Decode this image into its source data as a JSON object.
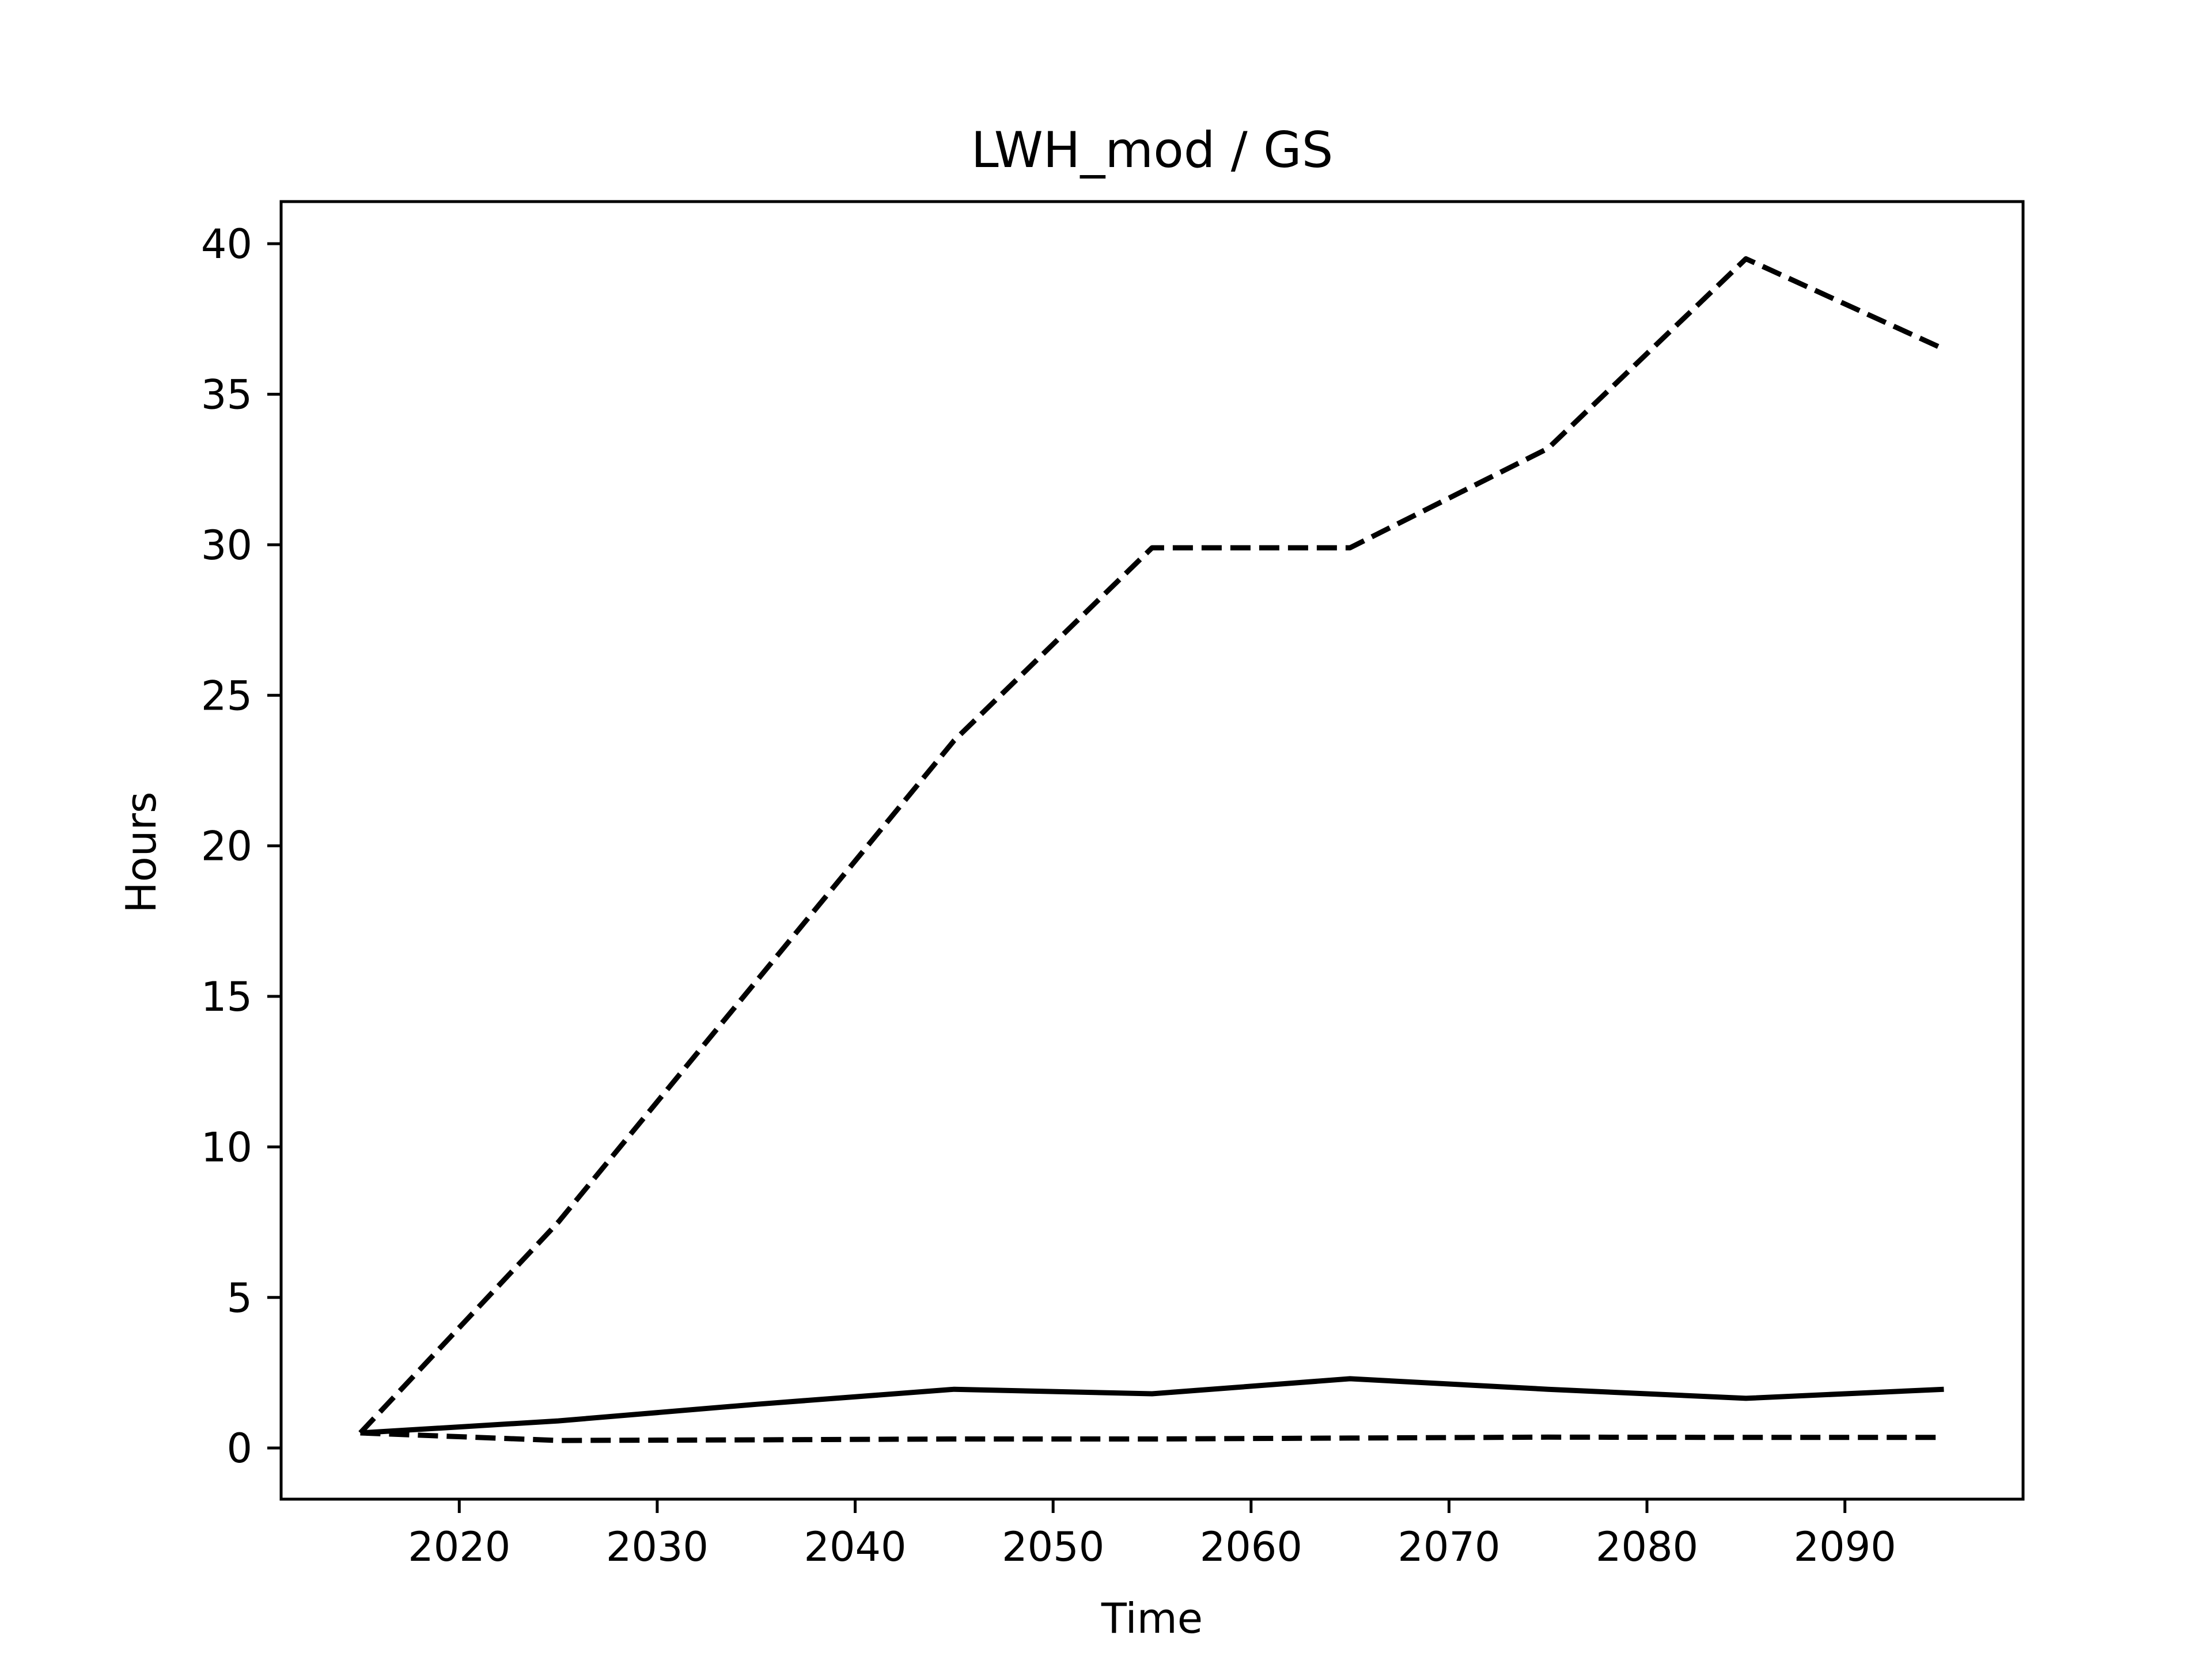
{
  "chart_data": {
    "type": "line",
    "title": "LWH_mod / GS",
    "xlabel": "Time",
    "ylabel": "Hours",
    "xlim": [
      2011,
      2099
    ],
    "ylim": [
      -1.7,
      41.4
    ],
    "xticks": [
      2020,
      2030,
      2040,
      2050,
      2060,
      2070,
      2080,
      2090
    ],
    "yticks": [
      0,
      5,
      10,
      15,
      20,
      25,
      30,
      35,
      40
    ],
    "grid": false,
    "legend": "none",
    "colors": {
      "line": "#000000",
      "frame": "#000000",
      "background": "#ffffff"
    },
    "series": [
      {
        "style": "dashed",
        "x": [
          2015,
          2025,
          2035,
          2045,
          2055,
          2065,
          2075,
          2085,
          2095
        ],
        "y": [
          0.5,
          7.5,
          15.5,
          23.5,
          29.9,
          29.9,
          33.2,
          39.5,
          36.5
        ]
      },
      {
        "style": "solid",
        "x": [
          2015,
          2025,
          2035,
          2045,
          2055,
          2065,
          2075,
          2085,
          2095
        ],
        "y": [
          0.5,
          0.9,
          1.45,
          1.95,
          1.8,
          2.3,
          1.95,
          1.65,
          1.95
        ]
      },
      {
        "style": "dashed",
        "x": [
          2015,
          2025,
          2035,
          2045,
          2055,
          2065,
          2075,
          2085,
          2095
        ],
        "y": [
          0.5,
          0.25,
          0.27,
          0.3,
          0.3,
          0.33,
          0.36,
          0.35,
          0.35
        ]
      }
    ]
  }
}
